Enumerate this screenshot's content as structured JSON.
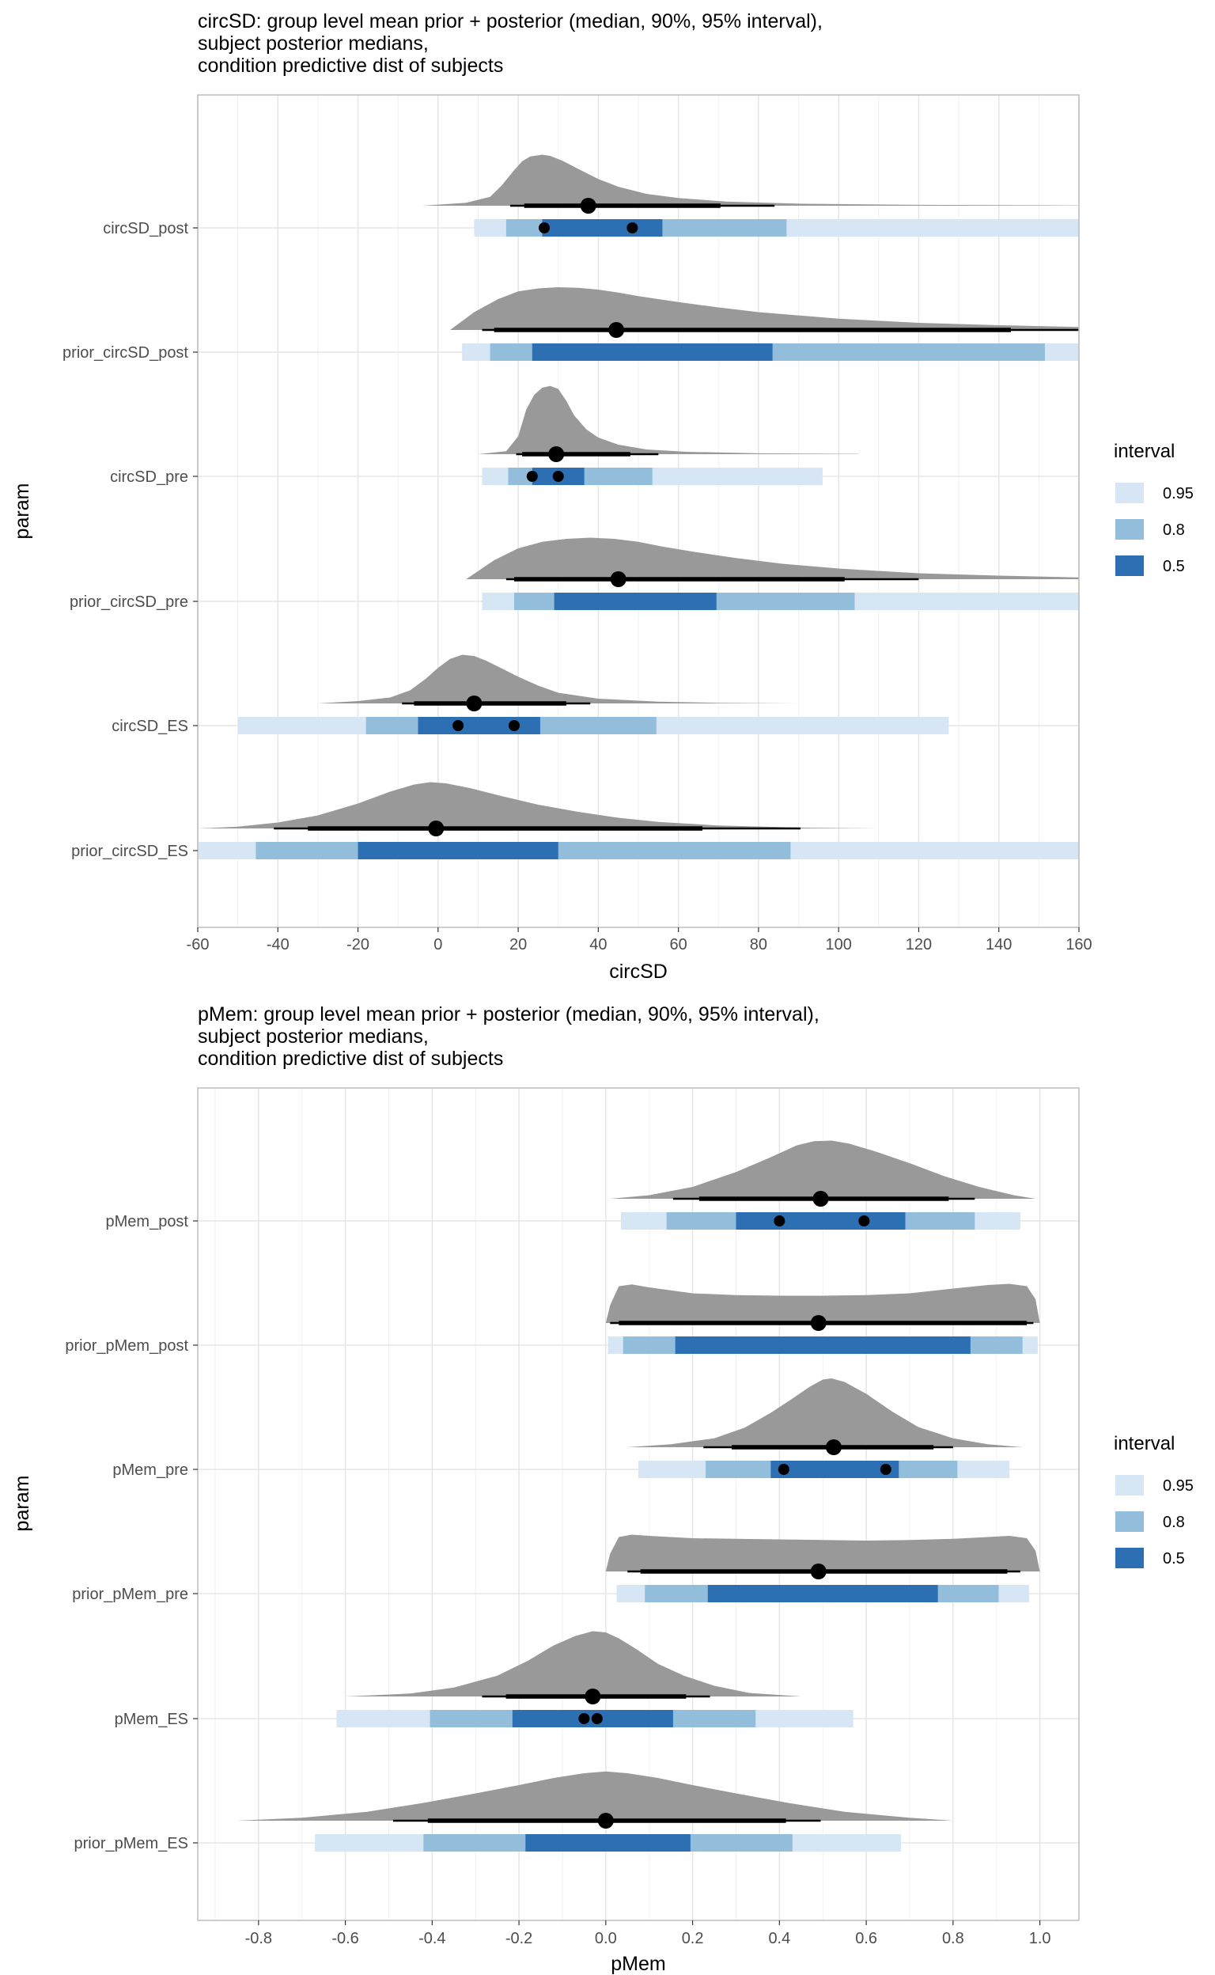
{
  "colors": {
    "band_95": "#d6e6f4",
    "band_80": "#92bedb",
    "band_50": "#2c6fb3",
    "density": "#999999",
    "grid": "#e5e5e5",
    "panel_border": "#bdbdbd",
    "point": "#000000"
  },
  "legend": {
    "title": "interval",
    "items": [
      {
        "label": "0.95",
        "color": "#d6e6f4"
      },
      {
        "label": "0.8",
        "color": "#92bedb"
      },
      {
        "label": "0.5",
        "color": "#2c6fb3"
      }
    ]
  },
  "chart_data": [
    {
      "type": "interval",
      "title_lines": [
        "circSD: group level mean prior + posterior (median, 90%, 95% interval),",
        "subject posterior medians,",
        "condition predictive dist of subjects"
      ],
      "xlabel": "circSD",
      "ylabel": "param",
      "xlim": [
        -60,
        160
      ],
      "x_ticks": [
        "-60",
        "-40",
        "-20",
        "0",
        "20",
        "40",
        "60",
        "80",
        "100",
        "120",
        "140",
        "160"
      ],
      "grid": true,
      "legend_position": "right",
      "rows": [
        {
          "label": "circSD_post",
          "density": {
            "x": [
              -4,
              7,
              13,
              16,
              19,
              21,
              23,
              26,
              28,
              31,
              35,
              40,
              45,
              52,
              60,
              72,
              90,
              120,
              160
            ],
            "y": [
              0.0,
              0.05,
              0.15,
              0.35,
              0.6,
              0.75,
              0.83,
              0.86,
              0.84,
              0.76,
              0.62,
              0.45,
              0.32,
              0.2,
              0.13,
              0.07,
              0.035,
              0.015,
              0.005
            ]
          },
          "median": 37.5,
          "interval_90": [
            21.5,
            70.5
          ],
          "interval_95": [
            18,
            84
          ],
          "band_95": [
            9,
            160
          ],
          "band_80": [
            17,
            87
          ],
          "band_50": [
            26,
            56
          ],
          "subject_medians": [
            26.5,
            48.5
          ]
        },
        {
          "label": "prior_circSD_post",
          "density": {
            "x": [
              3,
              9,
              15,
              20,
              25,
              30,
              35,
              40,
              45,
              50,
              60,
              70,
              80,
              100,
              120,
              140,
              160
            ],
            "y": [
              0.0,
              0.3,
              0.52,
              0.65,
              0.7,
              0.72,
              0.71,
              0.68,
              0.63,
              0.57,
              0.47,
              0.38,
              0.3,
              0.19,
              0.12,
              0.08,
              0.05
            ]
          },
          "median": 44.5,
          "interval_90": [
            14,
            143
          ],
          "interval_95": [
            11,
            160
          ],
          "band_95": [
            6,
            160
          ],
          "band_80": [
            13,
            151.5
          ],
          "band_50": [
            23.5,
            83.5
          ],
          "subject_medians": []
        },
        {
          "label": "circSD_pre",
          "density": {
            "x": [
              10,
              17,
              20,
              22,
              24,
              26,
              28,
              30,
              32,
              34,
              37,
              40,
              45,
              52,
              62,
              80,
              105
            ],
            "y": [
              0.0,
              0.05,
              0.3,
              0.75,
              1.0,
              1.12,
              1.15,
              1.1,
              0.9,
              0.65,
              0.42,
              0.28,
              0.16,
              0.08,
              0.04,
              0.015,
              0.005
            ]
          },
          "median": 29.5,
          "interval_90": [
            21,
            48
          ],
          "interval_95": [
            19.5,
            55
          ],
          "band_95": [
            11,
            96
          ],
          "band_80": [
            17.5,
            53.5
          ],
          "band_50": [
            23.5,
            36.5
          ],
          "subject_medians": [
            23.5,
            30
          ]
        },
        {
          "label": "prior_circSD_pre",
          "density": {
            "x": [
              7,
              14,
              20,
              26,
              32,
              38,
              44,
              50,
              56,
              64,
              74,
              86,
              100,
              120,
              140,
              160
            ],
            "y": [
              0.0,
              0.32,
              0.52,
              0.63,
              0.68,
              0.7,
              0.68,
              0.63,
              0.55,
              0.46,
              0.36,
              0.26,
              0.18,
              0.1,
              0.06,
              0.03
            ]
          },
          "median": 45,
          "interval_90": [
            19,
            101.5
          ],
          "interval_95": [
            17,
            120
          ],
          "band_95": [
            11,
            160
          ],
          "band_80": [
            19,
            104
          ],
          "band_50": [
            29,
            69.5
          ],
          "subject_medians": []
        },
        {
          "label": "circSD_ES",
          "density": {
            "x": [
              -30,
              -20,
              -12,
              -7,
              -3,
              0,
              3,
              6,
              9,
              12,
              15,
              20,
              25,
              30,
              40,
              55,
              70,
              90
            ],
            "y": [
              0.0,
              0.04,
              0.1,
              0.22,
              0.42,
              0.6,
              0.75,
              0.82,
              0.8,
              0.72,
              0.62,
              0.45,
              0.3,
              0.18,
              0.08,
              0.03,
              0.01,
              0.0
            ]
          },
          "median": 9,
          "interval_90": [
            -6,
            32
          ],
          "interval_95": [
            -9,
            38
          ],
          "band_95": [
            -50,
            127.5
          ],
          "band_80": [
            -18,
            54.5
          ],
          "band_50": [
            -5,
            25.5
          ],
          "subject_medians": [
            5,
            19
          ]
        },
        {
          "label": "prior_circSD_ES",
          "density": {
            "x": [
              -60,
              -50,
              -40,
              -30,
              -20,
              -12,
              -6,
              -2,
              2,
              8,
              15,
              25,
              35,
              45,
              55,
              70,
              90,
              110
            ],
            "y": [
              0.0,
              0.03,
              0.1,
              0.22,
              0.42,
              0.62,
              0.74,
              0.78,
              0.76,
              0.68,
              0.56,
              0.4,
              0.28,
              0.18,
              0.11,
              0.05,
              0.015,
              0.0
            ]
          },
          "median": -0.5,
          "interval_90": [
            -32.5,
            66
          ],
          "interval_95": [
            -41,
            90.5
          ],
          "band_95": [
            -60,
            160
          ],
          "band_80": [
            -45.5,
            88
          ],
          "band_50": [
            -20,
            30
          ],
          "subject_medians": []
        }
      ]
    },
    {
      "type": "interval",
      "title_lines": [
        "pMem: group level mean prior + posterior (median, 90%, 95% interval),",
        "subject posterior medians,",
        "condition predictive dist of subjects"
      ],
      "xlabel": "pMem",
      "ylabel": "param",
      "xlim": [
        -0.94,
        1.09
      ],
      "x_ticks": [
        "-0.8",
        "-0.6",
        "-0.4",
        "-0.2",
        "0.0",
        "0.2",
        "0.4",
        "0.6",
        "0.8",
        "1.0"
      ],
      "grid": true,
      "legend_position": "right",
      "rows": [
        {
          "label": "pMem_post",
          "density": {
            "x": [
              0.01,
              0.1,
              0.2,
              0.3,
              0.38,
              0.44,
              0.48,
              0.52,
              0.56,
              0.62,
              0.7,
              0.78,
              0.86,
              0.94,
              0.99
            ],
            "y": [
              0.0,
              0.06,
              0.2,
              0.45,
              0.7,
              0.9,
              0.97,
              0.98,
              0.93,
              0.8,
              0.6,
              0.38,
              0.2,
              0.06,
              0.0
            ]
          },
          "median": 0.495,
          "interval_90": [
            0.215,
            0.79
          ],
          "interval_95": [
            0.155,
            0.85
          ],
          "band_95": [
            0.035,
            0.955
          ],
          "band_80": [
            0.14,
            0.85
          ],
          "band_50": [
            0.3,
            0.69
          ],
          "subject_medians": [
            0.4,
            0.595
          ]
        },
        {
          "label": "prior_pMem_post",
          "density": {
            "x": [
              0.0,
              0.01,
              0.03,
              0.06,
              0.1,
              0.2,
              0.3,
              0.4,
              0.5,
              0.6,
              0.7,
              0.8,
              0.88,
              0.93,
              0.97,
              0.99,
              1.0
            ],
            "y": [
              0.0,
              0.3,
              0.62,
              0.65,
              0.6,
              0.5,
              0.47,
              0.46,
              0.46,
              0.47,
              0.5,
              0.58,
              0.64,
              0.66,
              0.62,
              0.4,
              0.0
            ]
          },
          "median": 0.49,
          "interval_90": [
            0.03,
            0.97
          ],
          "interval_95": [
            0.01,
            0.985
          ],
          "band_95": [
            0.005,
            0.995
          ],
          "band_80": [
            0.04,
            0.96
          ],
          "band_50": [
            0.16,
            0.84
          ],
          "subject_medians": []
        },
        {
          "label": "pMem_pre",
          "density": {
            "x": [
              0.05,
              0.15,
              0.25,
              0.32,
              0.38,
              0.43,
              0.47,
              0.5,
              0.52,
              0.55,
              0.6,
              0.66,
              0.72,
              0.8,
              0.88,
              0.96
            ],
            "y": [
              0.0,
              0.05,
              0.15,
              0.33,
              0.58,
              0.82,
              1.02,
              1.14,
              1.16,
              1.1,
              0.9,
              0.6,
              0.34,
              0.15,
              0.05,
              0.0
            ]
          },
          "median": 0.525,
          "interval_90": [
            0.29,
            0.755
          ],
          "interval_95": [
            0.225,
            0.8
          ],
          "band_95": [
            0.075,
            0.93
          ],
          "band_80": [
            0.23,
            0.81
          ],
          "band_50": [
            0.38,
            0.675
          ],
          "subject_medians": [
            0.41,
            0.645
          ]
        },
        {
          "label": "prior_pMem_pre",
          "density": {
            "x": [
              0.0,
              0.01,
              0.03,
              0.06,
              0.1,
              0.2,
              0.3,
              0.4,
              0.5,
              0.6,
              0.7,
              0.8,
              0.88,
              0.93,
              0.97,
              0.99,
              1.0
            ],
            "y": [
              0.0,
              0.3,
              0.58,
              0.62,
              0.6,
              0.56,
              0.55,
              0.54,
              0.53,
              0.52,
              0.53,
              0.55,
              0.58,
              0.6,
              0.56,
              0.35,
              0.0
            ]
          },
          "median": 0.49,
          "interval_90": [
            0.08,
            0.925
          ],
          "interval_95": [
            0.05,
            0.955
          ],
          "band_95": [
            0.025,
            0.975
          ],
          "band_80": [
            0.09,
            0.905
          ],
          "band_50": [
            0.235,
            0.765
          ],
          "subject_medians": []
        },
        {
          "label": "pMem_ES",
          "density": {
            "x": [
              -0.6,
              -0.45,
              -0.35,
              -0.25,
              -0.18,
              -0.12,
              -0.07,
              -0.03,
              0.0,
              0.03,
              0.07,
              0.12,
              0.18,
              0.25,
              0.33,
              0.45
            ],
            "y": [
              0.0,
              0.05,
              0.15,
              0.35,
              0.6,
              0.86,
              1.02,
              1.1,
              1.08,
              0.98,
              0.8,
              0.55,
              0.35,
              0.18,
              0.06,
              0.0
            ]
          },
          "median": -0.03,
          "interval_90": [
            -0.23,
            0.185
          ],
          "interval_95": [
            -0.285,
            0.24
          ],
          "band_95": [
            -0.62,
            0.57
          ],
          "band_80": [
            -0.405,
            0.345
          ],
          "band_50": [
            -0.215,
            0.155
          ],
          "subject_medians": [
            -0.05,
            -0.02
          ]
        },
        {
          "label": "prior_pMem_ES",
          "density": {
            "x": [
              -0.85,
              -0.7,
              -0.55,
              -0.42,
              -0.3,
              -0.2,
              -0.12,
              -0.05,
              0.0,
              0.05,
              0.12,
              0.2,
              0.3,
              0.42,
              0.55,
              0.7,
              0.8
            ],
            "y": [
              0.0,
              0.05,
              0.15,
              0.3,
              0.46,
              0.6,
              0.72,
              0.8,
              0.83,
              0.8,
              0.72,
              0.6,
              0.46,
              0.3,
              0.15,
              0.05,
              0.0
            ]
          },
          "median": 0.0,
          "interval_90": [
            -0.41,
            0.415
          ],
          "interval_95": [
            -0.49,
            0.495
          ],
          "band_95": [
            -0.67,
            0.68
          ],
          "band_80": [
            -0.42,
            0.43
          ],
          "band_50": [
            -0.185,
            0.195
          ],
          "subject_medians": []
        }
      ]
    }
  ]
}
